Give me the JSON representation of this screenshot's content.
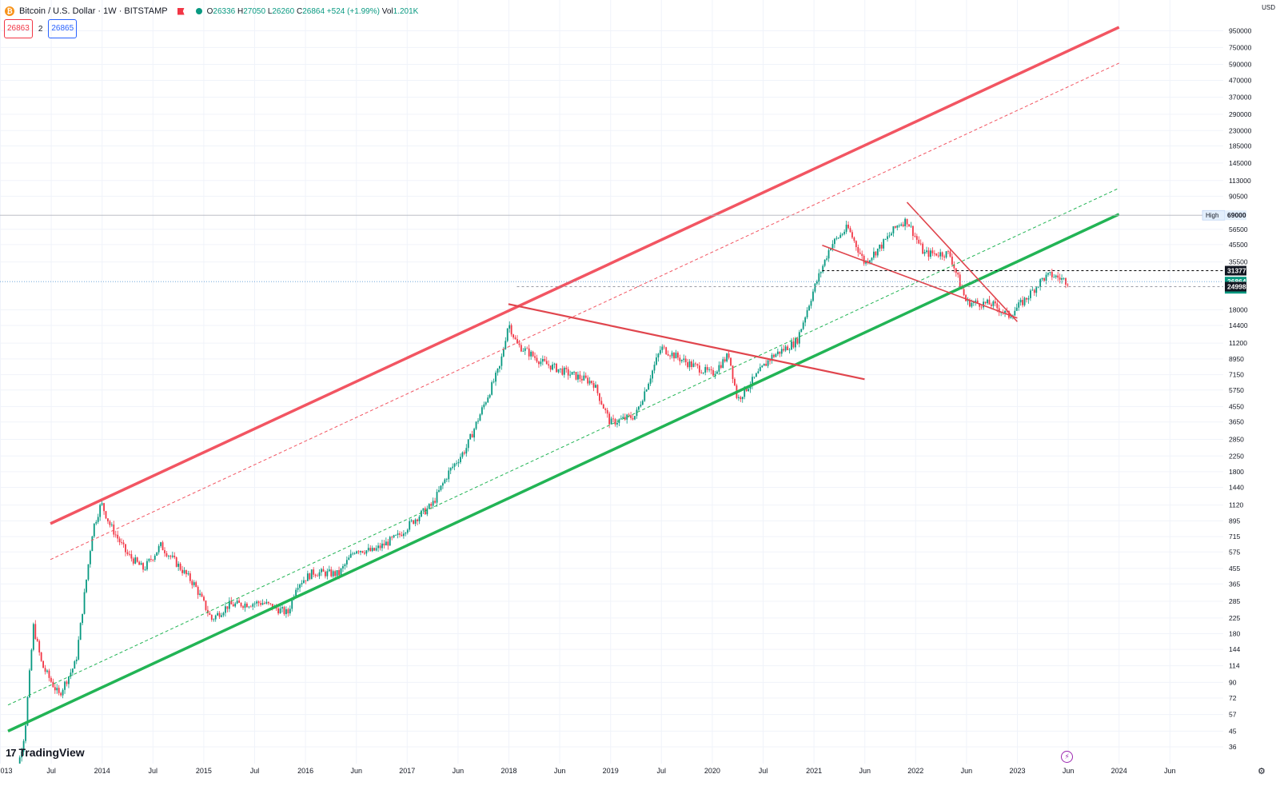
{
  "header": {
    "symbol_icon": "bitcoin-icon",
    "title": "Bitcoin / U.S. Dollar · 1W · BITSTAMP",
    "ohlc": [
      {
        "label": "O",
        "value": "26336"
      },
      {
        "label": "H",
        "value": "27050"
      },
      {
        "label": "L",
        "value": "26260"
      },
      {
        "label": "C",
        "value": "26864"
      }
    ],
    "change": "+524 (+1.99%)",
    "vol_label": "Vol",
    "vol_value": "1.201K"
  },
  "quote": {
    "sell": "26863",
    "spread": "2",
    "buy": "26865"
  },
  "branding": {
    "logo_text": "TradingView",
    "logo_mark": "17"
  },
  "currency_label": "USD",
  "colors": {
    "up": "#089981",
    "down": "#f23645",
    "channel_top": "#f25562",
    "channel_bottom": "#22b455",
    "trend": "#e0454d",
    "ref_line": "#5b9bd5"
  },
  "chart_data": {
    "type": "candlestick",
    "scale": "log",
    "interval": "1W",
    "y_ticks": [
      36,
      45,
      57,
      72,
      90,
      114,
      144,
      180,
      225,
      285,
      365,
      455,
      575,
      715,
      895,
      1120,
      1440,
      1800,
      2250,
      2850,
      3650,
      4550,
      5750,
      7150,
      8950,
      11200,
      14400,
      18000,
      35500,
      45500,
      56500,
      90500,
      113000,
      145000,
      185000,
      230000,
      290000,
      370000,
      470000,
      590000,
      750000,
      950000
    ],
    "x_ticks": [
      "013",
      "Jul",
      "2014",
      "Jul",
      "2015",
      "Jul",
      "2016",
      "Jun",
      "2017",
      "Jun",
      "2018",
      "Jun",
      "2019",
      "Jul",
      "2020",
      "Jul",
      "2021",
      "Jun",
      "2022",
      "Jun",
      "2023",
      "Jun",
      "2024",
      "Jun"
    ],
    "price_labels": {
      "high_tag": "High",
      "high_value": "69000",
      "level_upper": "31377",
      "last_price": "26864",
      "countdown": "6d 6h",
      "level_lower": "24998"
    },
    "channel_lines": [
      {
        "name": "upper-channel",
        "from": [
          "2013-06",
          860
        ],
        "to": [
          "2023-12",
          1000000
        ]
      },
      {
        "name": "lower-channel",
        "from": [
          "2013-01",
          45
        ],
        "to": [
          "2023-12",
          70000
        ]
      }
    ],
    "trend_lines": [
      {
        "name": "downtrend-2018",
        "from": [
          "2017-12",
          19500
        ],
        "to": [
          "2021-06",
          6700
        ]
      },
      {
        "name": "wedge-upper",
        "from": [
          "2021-11",
          83000
        ],
        "to": [
          "2022-12",
          15200
        ]
      },
      {
        "name": "wedge-lower",
        "from": [
          "2021-01",
          45000
        ],
        "to": [
          "2022-12",
          16000
        ]
      }
    ],
    "price_path": [
      [
        "2013-01",
        13
      ],
      [
        "2013-03",
        45
      ],
      [
        "2013-04",
        200
      ],
      [
        "2013-05",
        115
      ],
      [
        "2013-07",
        75
      ],
      [
        "2013-09",
        120
      ],
      [
        "2013-11",
        800
      ],
      [
        "2013-12",
        1150
      ],
      [
        "2014-01",
        850
      ],
      [
        "2014-03",
        560
      ],
      [
        "2014-05",
        450
      ],
      [
        "2014-07",
        630
      ],
      [
        "2014-09",
        480
      ],
      [
        "2014-11",
        360
      ],
      [
        "2015-01",
        220
      ],
      [
        "2015-03",
        270
      ],
      [
        "2015-07",
        280
      ],
      [
        "2015-10",
        240
      ],
      [
        "2015-11",
        360
      ],
      [
        "2016-01",
        430
      ],
      [
        "2016-04",
        420
      ],
      [
        "2016-06",
        600
      ],
      [
        "2016-08",
        580
      ],
      [
        "2016-11",
        720
      ],
      [
        "2017-01",
        920
      ],
      [
        "2017-03",
        1120
      ],
      [
        "2017-05",
        1800
      ],
      [
        "2017-07",
        2500
      ],
      [
        "2017-09",
        4500
      ],
      [
        "2017-11",
        8000
      ],
      [
        "2017-12",
        15000
      ],
      [
        "2018-01",
        11000
      ],
      [
        "2018-04",
        8500
      ],
      [
        "2018-07",
        7300
      ],
      [
        "2018-10",
        6400
      ],
      [
        "2018-12",
        3600
      ],
      [
        "2019-03",
        4000
      ],
      [
        "2019-06",
        10500
      ],
      [
        "2019-09",
        8500
      ],
      [
        "2019-12",
        7200
      ],
      [
        "2020-02",
        9500
      ],
      [
        "2020-03",
        5000
      ],
      [
        "2020-07",
        9200
      ],
      [
        "2020-10",
        11500
      ],
      [
        "2020-12",
        24000
      ],
      [
        "2021-02",
        45000
      ],
      [
        "2021-04",
        58000
      ],
      [
        "2021-06",
        35000
      ],
      [
        "2021-08",
        45000
      ],
      [
        "2021-10",
        61000
      ],
      [
        "2021-11",
        64000
      ],
      [
        "2022-01",
        40000
      ],
      [
        "2022-04",
        40000
      ],
      [
        "2022-06",
        20000
      ],
      [
        "2022-09",
        19500
      ],
      [
        "2022-11",
        16500
      ],
      [
        "2023-01",
        21000
      ],
      [
        "2023-03",
        28000
      ],
      [
        "2023-04",
        29500
      ],
      [
        "2023-06",
        26864
      ]
    ]
  }
}
